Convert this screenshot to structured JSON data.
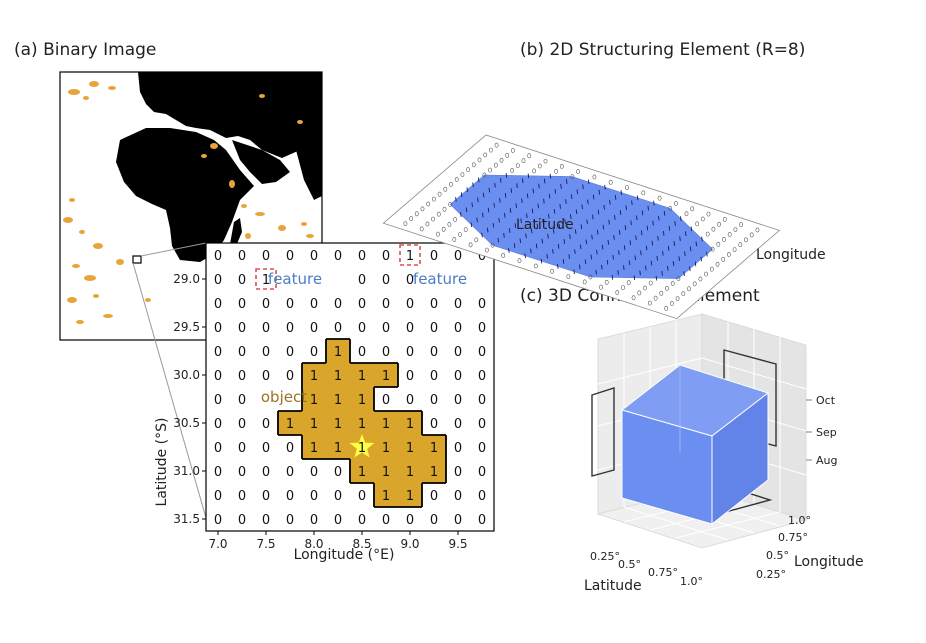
{
  "panels": {
    "a": {
      "title": "(a) Binary Image",
      "grid": {
        "xlabel": "Longitude (°E)",
        "ylabel": "Latitude (°S)",
        "xticks": [
          "7.0",
          "7.5",
          "8.0",
          "8.5",
          "9.0",
          "9.5"
        ],
        "yticks": [
          "29.0",
          "29.5",
          "30.0",
          "30.5",
          "31.0",
          "31.5"
        ],
        "cells": [
          "000000001000",
          "001000000000",
          "000000000000",
          "000000000000",
          "000001000000",
          "000011110000",
          "000011100000",
          "000111111000",
          "000011111100",
          "000000111100",
          "000000011000",
          "000000000000"
        ],
        "object_label": "object",
        "feature_label_1": "feature",
        "feature_label_2": "feature",
        "object_color": "#d9a52b",
        "feature_color": "#4b7cc4",
        "object_text_color": "#9a7420",
        "star_color": "#ffff44",
        "highlight_box_color": "#d9534f"
      },
      "map": {
        "land_color": "#000000",
        "ocean_color": "#ffffff",
        "feature_color": "#e8a33a"
      }
    },
    "b": {
      "title": "(b) 2D Structuring Element (R=8)",
      "xlabel": "Longitude",
      "ylabel": "Latitude",
      "fill_color": "#6b8ff0"
    },
    "c": {
      "title": "(c) 3D Connectivity Element",
      "xlabel": "Latitude",
      "ylabel": "Longitude",
      "lat_ticks": [
        "0.25°",
        "0.5°",
        "0.75°",
        "1.0°"
      ],
      "lon_ticks": [
        "0.25°",
        "0.5°",
        "0.75°",
        "1.0°"
      ],
      "time_ticks": [
        "Aug",
        "Sep",
        "Oct"
      ],
      "cube_color": "#6b8ff0"
    }
  }
}
